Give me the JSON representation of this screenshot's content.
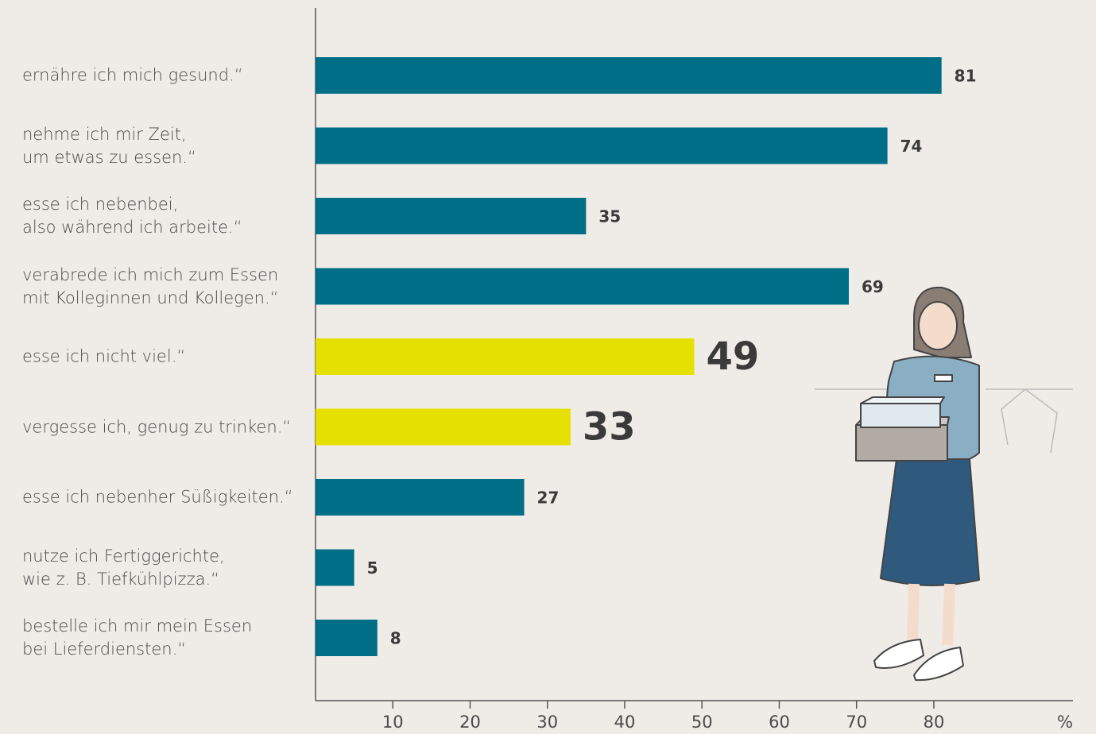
{
  "chart_data": {
    "type": "bar",
    "orientation": "horizontal",
    "categories": [
      "ernähre ich mich gesund.“",
      "nehme ich mir Zeit,\num etwas zu essen.“",
      "esse ich nebenbei,\nalso während ich arbeite.“",
      "verabrede ich mich zum Essen\nmit Kolleginnen und Kollegen.“",
      "esse ich nicht viel.“",
      "vergesse ich, genug zu trinken.“",
      "esse ich nebenher Süßigkeiten.“",
      "nutze ich Fertiggerichte,\nwie z. B. Tiefkühlpizza.“",
      "bestelle ich mir mein Essen\nbei Lieferdiensten.“"
    ],
    "values": [
      81,
      74,
      35,
      69,
      49,
      33,
      27,
      5,
      8
    ],
    "color": "#006e87",
    "colors": [
      "#006e87",
      "#006e87",
      "#006e87",
      "#006e87",
      "#e6e000",
      "#e6e000",
      "#006e87",
      "#006e87",
      "#006e87"
    ],
    "xlim": [
      0,
      98
    ],
    "xticks": [
      10,
      20,
      30,
      40,
      50,
      60,
      70,
      80
    ],
    "x_unit": "%"
  }
}
